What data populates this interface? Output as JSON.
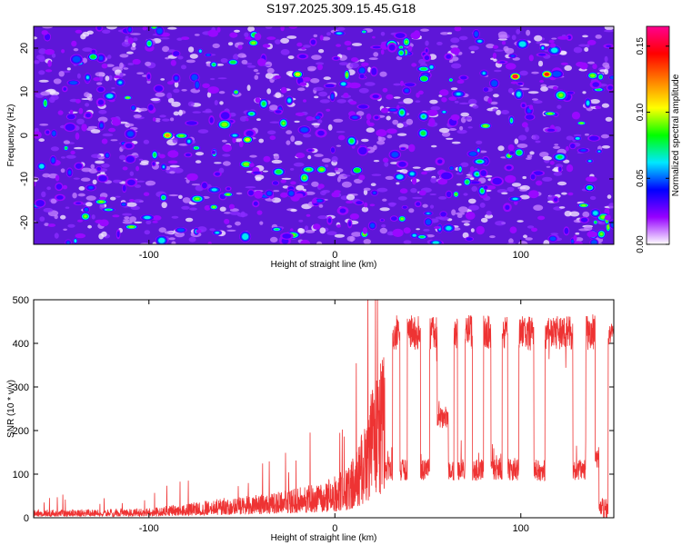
{
  "figure_title": "S197.2025.309.15.45.G18",
  "chart_data": [
    {
      "type": "heatmap",
      "title": "S197.2025.309.15.45.G18",
      "xlabel": "Height of straight line (km)",
      "ylabel": "Frequency (Hz)",
      "xlim": [
        -162,
        150
      ],
      "ylim": [
        -25,
        25
      ],
      "xticks": [
        -100,
        0,
        100
      ],
      "xtick_labels": [
        "-100",
        "0",
        "100"
      ],
      "yticks": [
        -20,
        -10,
        0,
        10,
        20
      ],
      "ytick_labels": [
        "-20",
        "-10",
        "0",
        "10",
        "20"
      ],
      "colorbar": {
        "label": "Normalized spectral amplitude",
        "range": [
          0,
          0.165
        ],
        "ticks": [
          0.0,
          0.05,
          0.1,
          0.15
        ],
        "tick_labels": [
          "0.00",
          "0.05",
          "0.10",
          "0.15"
        ],
        "colors": [
          "#ffffff",
          "#9600ff",
          "#0000ff",
          "#00e8ff",
          "#00ff00",
          "#ffff00",
          "#ff8000",
          "#ff0000",
          "#ff0090"
        ]
      },
      "peaks": [
        {
          "x": 97,
          "y": 13.5,
          "value": 0.15
        },
        {
          "x": 114,
          "y": 14,
          "value": 0.14
        },
        {
          "x": -20,
          "y": 14,
          "value": 0.1
        },
        {
          "x": -47,
          "y": -1,
          "value": 0.1
        },
        {
          "x": -90,
          "y": 0,
          "value": 0.12
        },
        {
          "x": 12,
          "y": -8,
          "value": 0.09
        },
        {
          "x": 48,
          "y": 13,
          "value": 0.09
        },
        {
          "x": -130,
          "y": 18,
          "value": 0.08
        },
        {
          "x": 137,
          "y": -12,
          "value": 0.07
        }
      ]
    },
    {
      "type": "line",
      "series": [
        {
          "name": "SNR",
          "color": "#ee3333"
        }
      ],
      "xlabel": "Height of straight line (km)",
      "ylabel": "SNR (10 * v/v)",
      "xlim": [
        -162,
        150
      ],
      "ylim": [
        0,
        500
      ],
      "xticks": [
        -100,
        0,
        100
      ],
      "xtick_labels": [
        "-100",
        "0",
        "100"
      ],
      "yticks": [
        0,
        100,
        200,
        300,
        400,
        500
      ],
      "ytick_labels": [
        "0",
        "100",
        "200",
        "300",
        "400",
        "500"
      ],
      "envelope": {
        "x": [
          -162,
          -100,
          -85,
          -60,
          -40,
          -25,
          -15,
          -5,
          0,
          8,
          14,
          18,
          22,
          28,
          33
        ],
        "y": [
          18,
          22,
          30,
          45,
          55,
          65,
          75,
          85,
          95,
          120,
          190,
          260,
          330,
          390,
          420
        ]
      },
      "high_level": 430,
      "low_level": 110,
      "segments": [
        [
          27,
          31,
          "low"
        ],
        [
          31,
          35,
          "high"
        ],
        [
          35,
          39,
          "low"
        ],
        [
          39,
          46,
          "high"
        ],
        [
          46,
          51,
          "low"
        ],
        [
          51,
          55,
          "high"
        ],
        [
          55,
          61,
          230
        ],
        [
          61,
          64,
          "low"
        ],
        [
          64,
          66,
          "high"
        ],
        [
          66,
          70,
          "low"
        ],
        [
          70,
          74,
          "high"
        ],
        [
          74,
          80,
          "low"
        ],
        [
          80,
          84,
          "high"
        ],
        [
          84,
          90,
          "low"
        ],
        [
          90,
          93,
          "high"
        ],
        [
          93,
          99,
          "low"
        ],
        [
          99,
          107,
          "high"
        ],
        [
          107,
          113,
          "low"
        ],
        [
          113,
          128,
          "high"
        ],
        [
          128,
          135,
          "low"
        ],
        [
          135,
          140,
          "high"
        ],
        [
          140,
          142,
          140
        ],
        [
          142,
          147,
          20
        ],
        [
          147,
          150,
          420
        ]
      ]
    }
  ]
}
